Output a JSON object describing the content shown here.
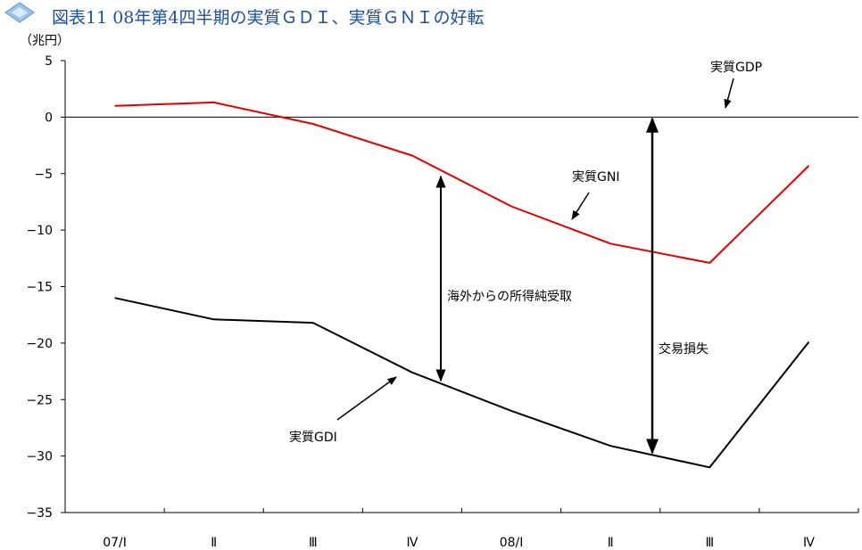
{
  "page_title": "図表11  08年第4四半期の実質ＧＤＩ、実質ＧＮＩの好転",
  "chart_data": {
    "type": "line",
    "title": "図表11  08年第4四半期の実質ＧＤＩ、実質ＧＮＩの好転",
    "ylabel": "（兆円）",
    "xlabel": "",
    "ylim": [
      -35,
      5
    ],
    "yticks": [
      5,
      0,
      -5,
      -10,
      -15,
      -20,
      -25,
      -30,
      -35
    ],
    "categories": [
      "07/Ⅰ",
      "Ⅱ",
      "Ⅲ",
      "Ⅳ",
      "08/Ⅰ",
      "Ⅱ",
      "Ⅲ",
      "Ⅳ"
    ],
    "series": [
      {
        "name": "実質GDP",
        "color": "#000000",
        "values": [
          0,
          0,
          0,
          0,
          0,
          0,
          0,
          0
        ]
      },
      {
        "name": "実質GNI",
        "color": "#e00000",
        "values": [
          1.0,
          1.3,
          -0.6,
          -3.4,
          -7.9,
          -11.2,
          -12.9,
          -4.3
        ]
      },
      {
        "name": "実質GDI",
        "color": "#000000",
        "values": [
          -16.0,
          -17.9,
          -18.2,
          -22.6,
          -26.0,
          -29.1,
          -31.0,
          -19.9
        ]
      }
    ],
    "annotations": [
      "海外からの所得純受取",
      "交易損失"
    ]
  }
}
